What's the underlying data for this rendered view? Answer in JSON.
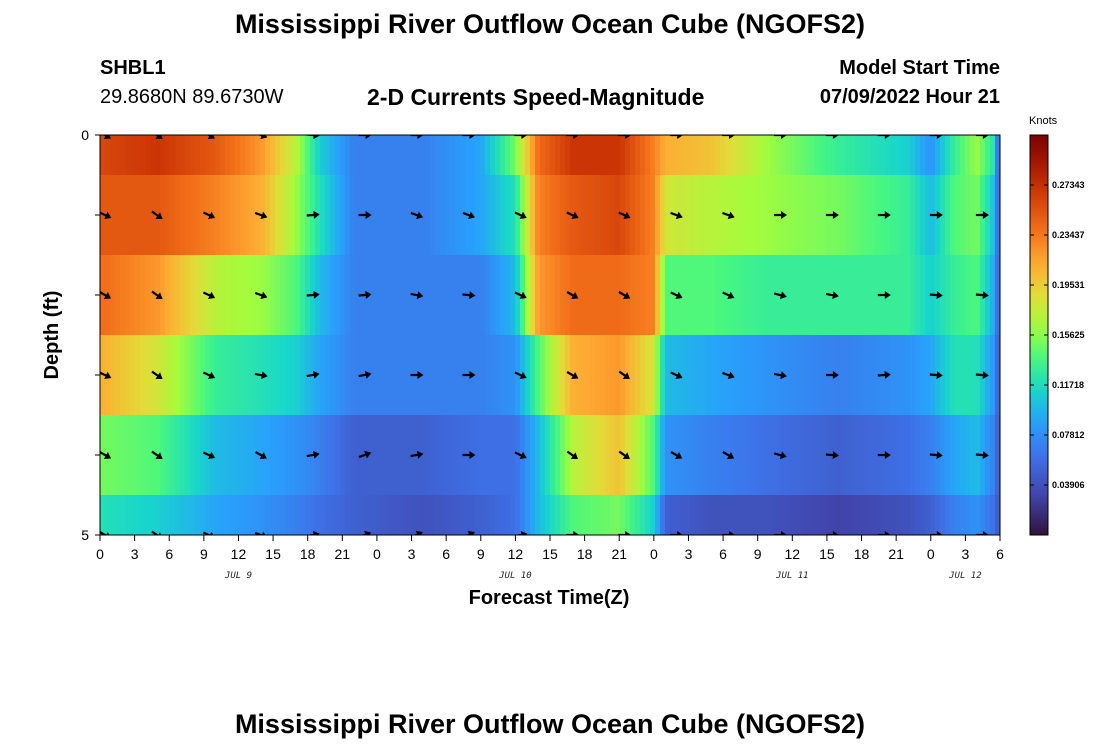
{
  "header": {
    "title": "Mississippi River Outflow Ocean Cube (NGOFS2)",
    "station": "SHBL1",
    "coords": "29.8680N  89.6730W",
    "subtitle": "2-D Currents Speed-Magnitude",
    "model_start_label": "Model Start Time",
    "model_start_value": "07/09/2022 Hour 21"
  },
  "footer": {
    "title": "Mississippi River Outflow Ocean Cube (NGOFS2)"
  },
  "chart_data": {
    "type": "heatmap",
    "xlabel": "Forecast Time(Z)",
    "ylabel": "Depth (ft)",
    "x_tick_labels": [
      "0",
      "3",
      "6",
      "9",
      "12",
      "15",
      "18",
      "21",
      "0",
      "3",
      "6",
      "9",
      "12",
      "15",
      "18",
      "21",
      "0",
      "3",
      "6",
      "9",
      "12",
      "15",
      "18",
      "21",
      "0",
      "3",
      "6"
    ],
    "x_date_labels": [
      {
        "label": "JUL 9",
        "hour_index": 12
      },
      {
        "label": "JUL 10",
        "hour_index": 36
      },
      {
        "label": "JUL 11",
        "hour_index": 60
      },
      {
        "label": "JUL 12",
        "hour_index": 75
      }
    ],
    "x_range_hours": [
      0,
      78
    ],
    "y_range_ft": [
      0,
      5
    ],
    "y_tick_labels": [
      "0",
      "5"
    ],
    "colorbar": {
      "units": "Knots",
      "range": [
        0,
        0.3125
      ],
      "ticks": [
        "0.27343",
        "0.23437",
        "0.19531",
        "0.15625",
        "0.11718",
        "0.07812",
        "0.03906"
      ]
    },
    "speed_keyframes": [
      {
        "x": [
          0,
          5,
          10,
          14,
          17,
          19,
          22,
          28,
          33,
          36,
          38,
          41,
          45,
          48,
          49,
          53,
          58,
          64,
          70,
          72,
          74,
          76,
          77.5,
          78
        ],
        "values": [
          0.26,
          0.27,
          0.25,
          0.22,
          0.17,
          0.11,
          0.07,
          0.07,
          0.09,
          0.15,
          0.24,
          0.27,
          0.27,
          0.23,
          0.21,
          0.2,
          0.16,
          0.13,
          0.11,
          0.08,
          0.13,
          0.16,
          0.12,
          0.03
        ]
      },
      {
        "x": [
          0,
          5,
          10,
          14,
          17,
          19,
          22,
          28,
          33,
          36,
          38,
          41,
          45,
          48,
          49,
          53,
          58,
          64,
          70,
          72,
          74,
          76,
          77.5,
          78
        ],
        "values": [
          0.25,
          0.25,
          0.23,
          0.21,
          0.16,
          0.12,
          0.07,
          0.07,
          0.09,
          0.12,
          0.23,
          0.25,
          0.26,
          0.23,
          0.18,
          0.17,
          0.16,
          0.15,
          0.13,
          0.1,
          0.14,
          0.15,
          0.1,
          0.04
        ]
      },
      {
        "x": [
          0,
          5,
          10,
          14,
          17,
          19,
          22,
          28,
          33,
          36,
          38,
          41,
          45,
          48,
          49,
          53,
          58,
          64,
          70,
          72,
          74,
          76,
          77.5,
          78
        ],
        "values": [
          0.24,
          0.22,
          0.17,
          0.16,
          0.14,
          0.1,
          0.07,
          0.07,
          0.07,
          0.1,
          0.22,
          0.24,
          0.24,
          0.23,
          0.14,
          0.14,
          0.13,
          0.13,
          0.13,
          0.11,
          0.13,
          0.14,
          0.09,
          0.04
        ]
      },
      {
        "x": [
          0,
          5,
          10,
          14,
          17,
          19,
          22,
          28,
          33,
          36,
          38,
          41,
          45,
          48,
          49,
          53,
          58,
          64,
          70,
          72,
          74,
          76,
          77.5,
          78
        ],
        "values": [
          0.21,
          0.18,
          0.13,
          0.12,
          0.11,
          0.09,
          0.07,
          0.07,
          0.07,
          0.08,
          0.14,
          0.21,
          0.22,
          0.18,
          0.1,
          0.09,
          0.08,
          0.07,
          0.08,
          0.09,
          0.12,
          0.12,
          0.08,
          0.04
        ]
      },
      {
        "x": [
          0,
          5,
          10,
          14,
          17,
          19,
          22,
          28,
          33,
          36,
          38,
          41,
          45,
          48,
          49,
          53,
          58,
          64,
          70,
          72,
          74,
          76,
          77.5,
          78
        ],
        "values": [
          0.15,
          0.14,
          0.1,
          0.09,
          0.08,
          0.07,
          0.05,
          0.05,
          0.06,
          0.06,
          0.1,
          0.17,
          0.2,
          0.14,
          0.08,
          0.07,
          0.06,
          0.05,
          0.06,
          0.07,
          0.09,
          0.1,
          0.07,
          0.04
        ]
      },
      {
        "x": [
          0,
          5,
          10,
          14,
          17,
          19,
          22,
          28,
          33,
          36,
          38,
          41,
          45,
          48,
          49,
          53,
          58,
          64,
          70,
          72,
          74,
          76,
          77.5,
          78
        ],
        "values": [
          0.12,
          0.11,
          0.09,
          0.08,
          0.07,
          0.06,
          0.05,
          0.04,
          0.05,
          0.06,
          0.1,
          0.14,
          0.15,
          0.11,
          0.05,
          0.04,
          0.04,
          0.03,
          0.04,
          0.05,
          0.07,
          0.08,
          0.06,
          0.04
        ]
      }
    ],
    "arrow_hours": [
      0,
      4.5,
      9,
      13.5,
      18,
      22.5,
      27,
      31.5,
      36,
      40.5,
      45,
      49.5,
      54,
      58.5,
      63,
      67.5,
      72,
      76
    ],
    "arrow_rows": [
      {
        "depth_ft": 0,
        "angles_deg": [
          30,
          35,
          30,
          20,
          5,
          0,
          0,
          0,
          0,
          0,
          0,
          0,
          0,
          0,
          0,
          0,
          0,
          0
        ]
      },
      {
        "depth_ft": 1,
        "angles_deg": [
          25,
          35,
          25,
          20,
          -5,
          0,
          20,
          20,
          25,
          25,
          25,
          20,
          20,
          0,
          0,
          0,
          0,
          0
        ]
      },
      {
        "depth_ft": 2,
        "angles_deg": [
          30,
          35,
          25,
          20,
          -5,
          -5,
          10,
          5,
          25,
          30,
          30,
          25,
          25,
          15,
          10,
          0,
          5,
          5
        ]
      },
      {
        "depth_ft": 3,
        "angles_deg": [
          25,
          35,
          25,
          10,
          -10,
          -10,
          0,
          0,
          25,
          30,
          35,
          25,
          20,
          10,
          0,
          -5,
          5,
          5
        ]
      },
      {
        "depth_ft": 4,
        "angles_deg": [
          30,
          35,
          25,
          30,
          -10,
          -20,
          -10,
          0,
          25,
          35,
          35,
          30,
          30,
          15,
          5,
          0,
          5,
          5
        ]
      },
      {
        "depth_ft": 5,
        "angles_deg": [
          30,
          35,
          25,
          20,
          -10,
          -20,
          -25,
          -25,
          -10,
          0,
          0,
          0,
          0,
          0,
          0,
          0,
          0,
          0
        ]
      }
    ]
  }
}
